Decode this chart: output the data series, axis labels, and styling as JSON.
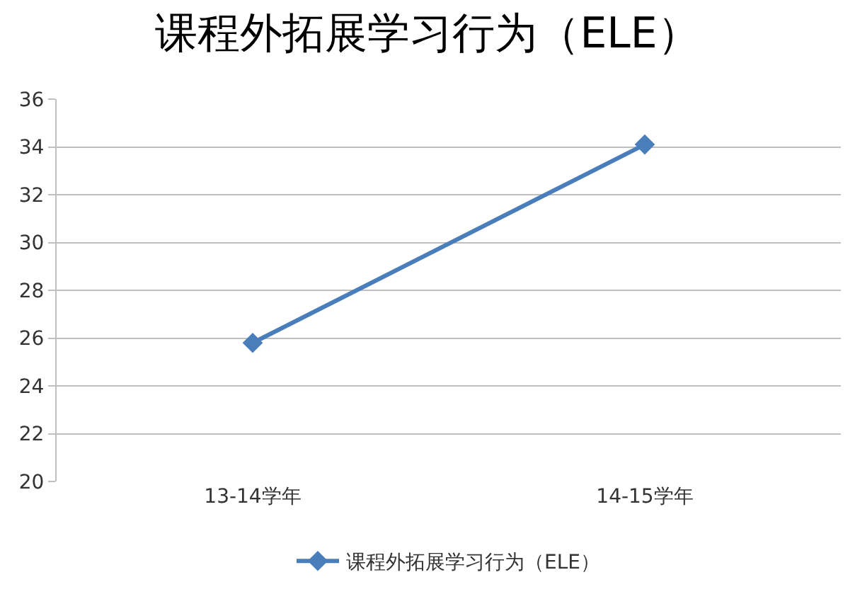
{
  "chart_data": {
    "type": "line",
    "title": "课程外拓展学习行为（ELE）",
    "categories": [
      "13-14学年",
      "14-15学年"
    ],
    "series": [
      {
        "name": "课程外拓展学习行为（ELE）",
        "color": "#4a7ebb",
        "values": [
          25.8,
          34.1
        ]
      }
    ],
    "ylim": [
      20,
      36
    ],
    "yticks": [
      20,
      22,
      24,
      26,
      28,
      30,
      32,
      34,
      36
    ],
    "grid": "y",
    "legend": "bottom",
    "marker": "diamond",
    "line_style": "solid"
  }
}
